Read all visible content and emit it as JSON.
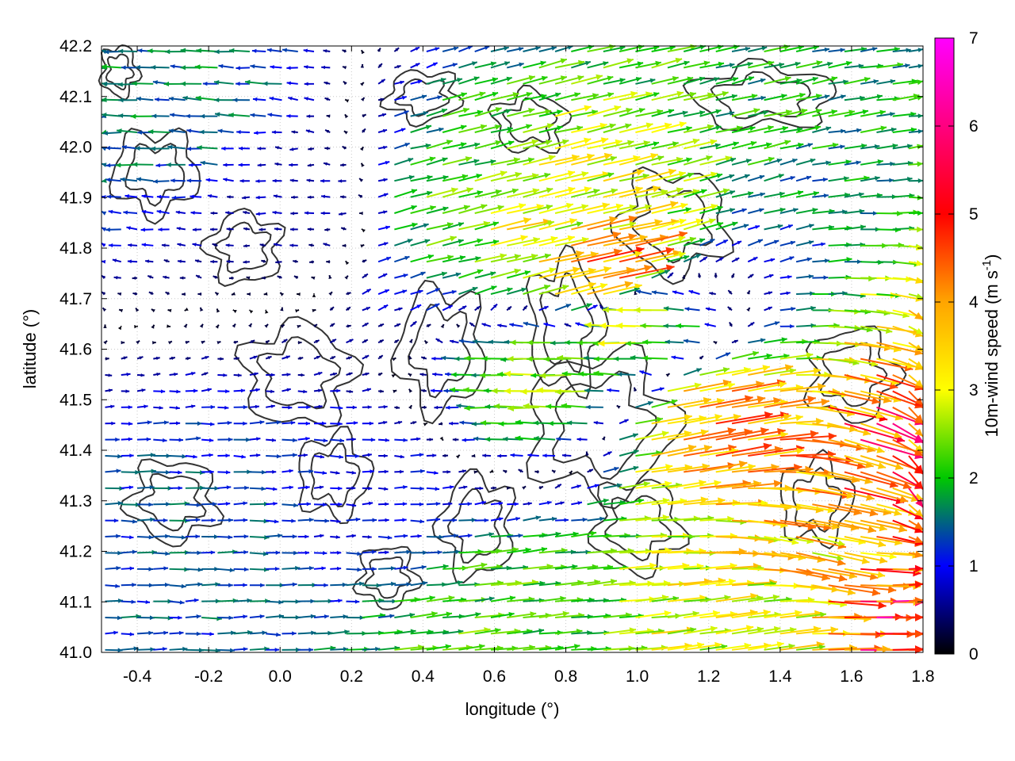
{
  "chart_data": {
    "type": "vector-field",
    "xlabel": "longitude (°)",
    "ylabel": "latitude (°)",
    "colorbar_label": "10m-wind speed (m s",
    "colorbar_unit_exponent": "-1",
    "colorbar_label_close": ")",
    "xlim": [
      -0.5,
      1.8
    ],
    "ylim": [
      41.0,
      42.2
    ],
    "colorbar_range": [
      0,
      7
    ],
    "x_ticks": [
      "-0.4",
      "-0.2",
      "0.0",
      "0.2",
      "0.4",
      "0.6",
      "0.8",
      "1.0",
      "1.2",
      "1.4",
      "1.6",
      "1.8"
    ],
    "x_tick_values": [
      -0.4,
      -0.2,
      0.0,
      0.2,
      0.4,
      0.6,
      0.8,
      1.0,
      1.2,
      1.4,
      1.6,
      1.8
    ],
    "y_ticks": [
      "41.0",
      "41.1",
      "41.2",
      "41.3",
      "41.4",
      "41.5",
      "41.6",
      "41.7",
      "41.8",
      "41.9",
      "42.0",
      "42.1",
      "42.2"
    ],
    "y_tick_values": [
      41.0,
      41.1,
      41.2,
      41.3,
      41.4,
      41.5,
      41.6,
      41.7,
      41.8,
      41.9,
      42.0,
      42.1,
      42.2
    ],
    "colorbar_ticks": [
      "0",
      "1",
      "2",
      "3",
      "4",
      "5",
      "6",
      "7"
    ],
    "colorbar_tick_values": [
      0,
      1,
      2,
      3,
      4,
      5,
      6,
      7
    ],
    "colormap": [
      "#000000",
      "#0000ff",
      "#00c800",
      "#ffff00",
      "#ffa500",
      "#ff0000",
      "#ff00ff"
    ],
    "grid": true,
    "contour_color": "#333333",
    "wind_vectors": [
      {
        "lon": -0.45,
        "lat": 42.15,
        "u": -2.0,
        "v": 0.0
      },
      {
        "lon": -0.25,
        "lat": 42.1,
        "u": -1.8,
        "v": 0.1
      },
      {
        "lon": 0.1,
        "lat": 41.9,
        "u": -0.8,
        "v": 0.0
      },
      {
        "lon": 0.45,
        "lat": 41.9,
        "u": 2.5,
        "v": 0.6
      },
      {
        "lon": 0.7,
        "lat": 41.85,
        "u": 3.5,
        "v": 0.8
      },
      {
        "lon": 0.9,
        "lat": 41.75,
        "u": 4.8,
        "v": 1.0
      },
      {
        "lon": 1.0,
        "lat": 41.65,
        "u": -3.2,
        "v": 0.0
      },
      {
        "lon": 0.75,
        "lat": 41.55,
        "u": -2.8,
        "v": 0.0
      },
      {
        "lon": 1.2,
        "lat": 41.45,
        "u": 4.5,
        "v": 0.8
      },
      {
        "lon": 1.7,
        "lat": 41.4,
        "u": 5.0,
        "v": -1.5
      },
      {
        "lon": 1.7,
        "lat": 41.1,
        "u": 5.5,
        "v": 0.0
      },
      {
        "lon": 1.5,
        "lat": 41.2,
        "u": 4.0,
        "v": -0.8
      },
      {
        "lon": -0.2,
        "lat": 41.2,
        "u": 1.6,
        "v": 0.0
      },
      {
        "lon": 0.2,
        "lat": 41.3,
        "u": 1.2,
        "v": 0.0
      },
      {
        "lon": 0.6,
        "lat": 41.05,
        "u": 2.5,
        "v": 0.3
      },
      {
        "lon": 1.3,
        "lat": 41.05,
        "u": 3.5,
        "v": 0.5
      }
    ]
  }
}
